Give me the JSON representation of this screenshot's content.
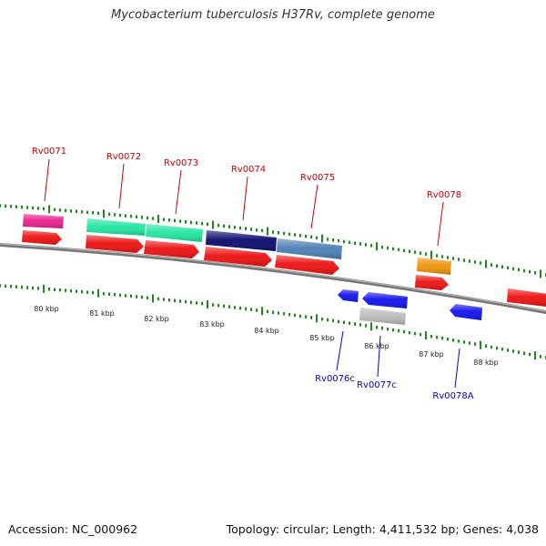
{
  "title": "Mycobacterium tuberculosis H37Rv, complete genome",
  "footer": {
    "accession": "Accession: NC_000962",
    "topology": "Topology: circular; Length: 4,411,532 bp; Genes: 4,038"
  },
  "colors": {
    "backbone": "#7a7a7a",
    "tick": "#1a8a1a",
    "label_forward": "#cc0000",
    "label_reverse": "#0000cc",
    "cds_forward": "#ee1111",
    "cds_reverse": "#1111ee"
  },
  "scale_labels": [
    "80 kbp",
    "81 kbp",
    "82 kbp",
    "83 kbp",
    "84 kbp",
    "85 kbp",
    "86 kbp",
    "87 kbp",
    "88 kbp"
  ],
  "genes_forward": [
    {
      "name": "Rv0071",
      "feature_color": "#e8208f"
    },
    {
      "name": "Rv0072",
      "feature_color": "#22e6a0"
    },
    {
      "name": "Rv0073",
      "feature_color": "#22e6a0"
    },
    {
      "name": "Rv0074",
      "feature_color": "#0a0a6e"
    },
    {
      "name": "Rv0075",
      "feature_color": "#4a7fb5"
    },
    {
      "name": "Rv0078",
      "feature_color": "#f0920a"
    }
  ],
  "genes_reverse": [
    {
      "name": "Rv0076c",
      "feature_color": "#1111ee"
    },
    {
      "name": "Rv0077c",
      "feature_color": "#bbbbbb"
    },
    {
      "name": "Rv0078A",
      "feature_color": "#1111ee"
    }
  ]
}
